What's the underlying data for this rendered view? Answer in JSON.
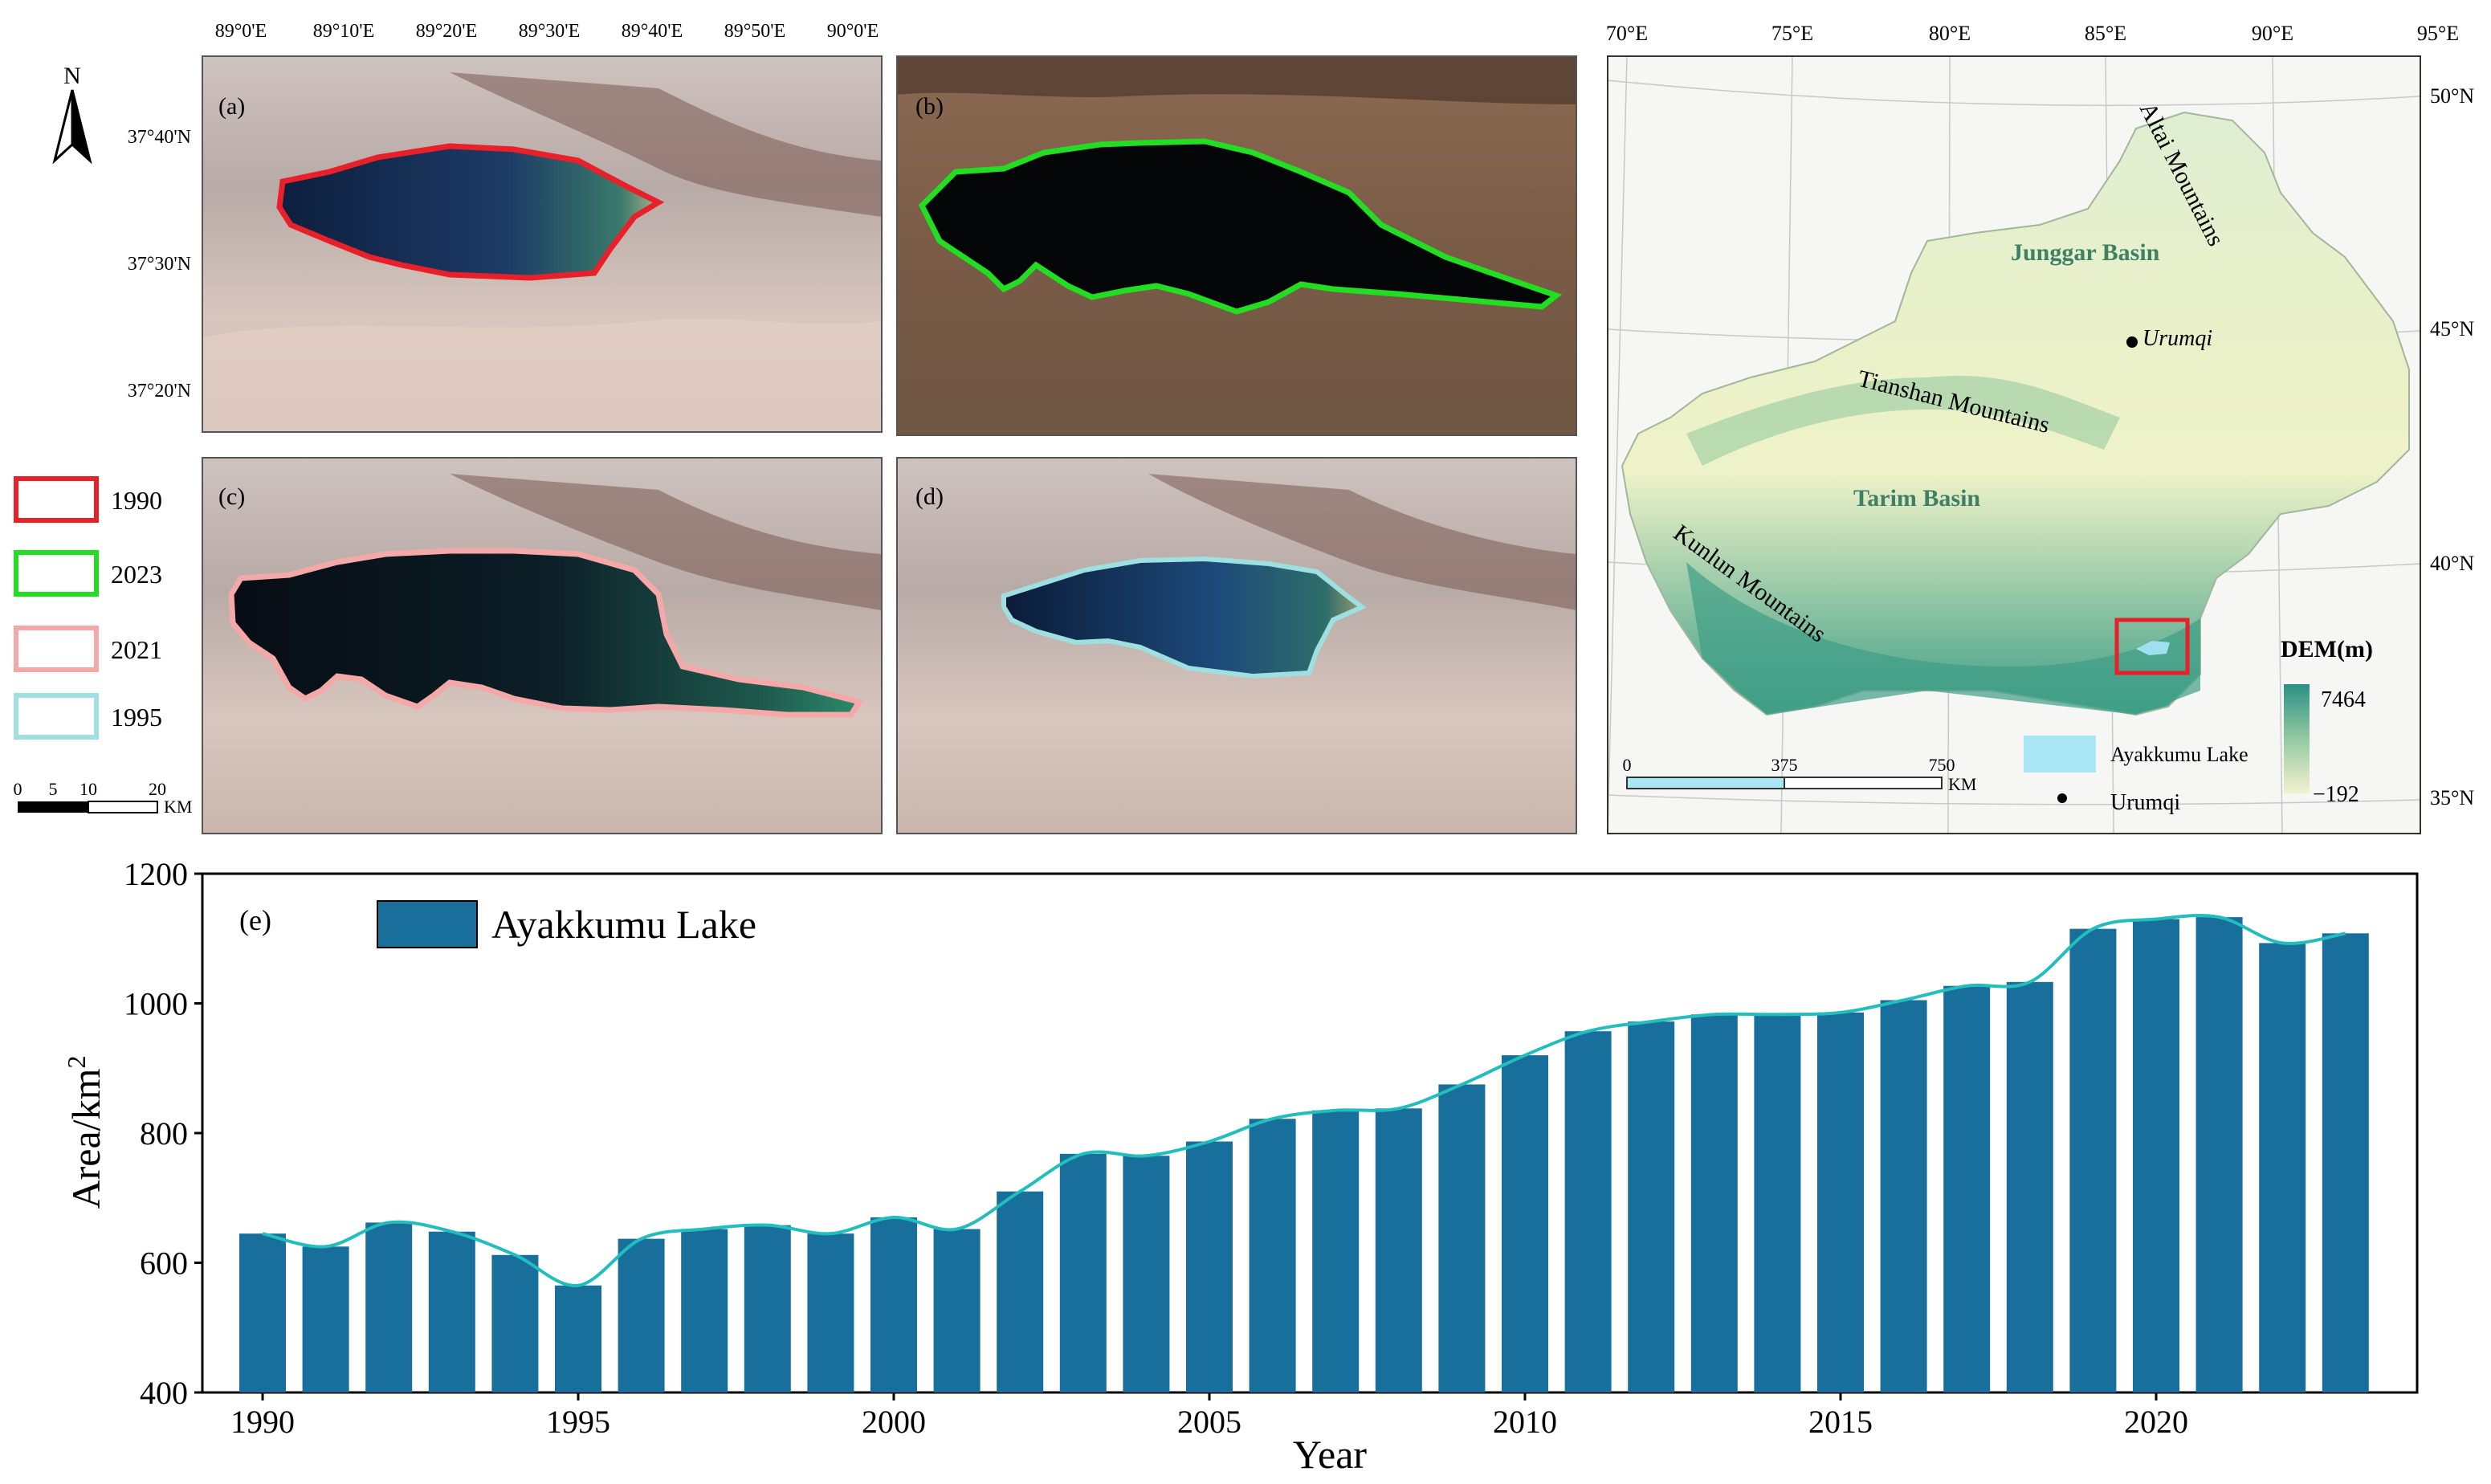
{
  "panels": {
    "a": {
      "label": "(a)"
    },
    "b": {
      "label": "(b)"
    },
    "c": {
      "label": "(c)"
    },
    "d": {
      "label": "(d)"
    },
    "e": {
      "label": "(e)"
    }
  },
  "lon_ticks": [
    "89°0'E",
    "89°10'E",
    "89°20'E",
    "89°30'E",
    "89°40'E",
    "89°50'E",
    "90°0'E"
  ],
  "lat_ticks": [
    "37°40'N",
    "37°30'N",
    "37°20'N"
  ],
  "north_label": "N",
  "year_legend": [
    {
      "year": "1990",
      "color": "#e8202a"
    },
    {
      "year": "2023",
      "color": "#22dd22"
    },
    {
      "year": "2021",
      "color": "#f4a8a8"
    },
    {
      "year": "1995",
      "color": "#9ee0e0"
    }
  ],
  "small_scale": {
    "ticks": [
      "0",
      "5",
      "10",
      "20"
    ],
    "unit": "KM"
  },
  "map": {
    "lon_ticks": [
      "70°E",
      "75°E",
      "80°E",
      "85°E",
      "90°E",
      "95°E"
    ],
    "lat_ticks": [
      "50°N",
      "45°N",
      "40°N",
      "35°N"
    ],
    "labels": {
      "altai": "Altai Mountains",
      "junggar": "Junggar Basin",
      "urumqi": "Urumqi",
      "tianshan": "Tianshan Mountains",
      "tarim": "Tarim Basin",
      "kunlun": "Kunlun Mountains"
    },
    "dem_title": "DEM(m)",
    "dem_max": "7464",
    "dem_min": "−192",
    "legend_lake": "Ayakkumu Lake",
    "legend_city": "Urumqi",
    "scale_ticks": [
      "0",
      "375",
      "750"
    ],
    "scale_unit": "KM"
  },
  "chart_data": {
    "type": "bar",
    "title": "",
    "series": [
      {
        "name": "Ayakkumu Lake",
        "color": "#196f9b"
      }
    ],
    "categories": [
      1990,
      1991,
      1992,
      1993,
      1994,
      1995,
      1996,
      1997,
      1998,
      1999,
      2000,
      2001,
      2002,
      2003,
      2004,
      2005,
      2006,
      2007,
      2008,
      2009,
      2010,
      2011,
      2012,
      2013,
      2014,
      2015,
      2016,
      2017,
      2018,
      2019,
      2020,
      2021,
      2022,
      2023
    ],
    "values": [
      645,
      625,
      662,
      648,
      612,
      565,
      637,
      652,
      658,
      645,
      670,
      652,
      710,
      768,
      765,
      787,
      822,
      835,
      838,
      875,
      920,
      957,
      972,
      983,
      983,
      986,
      1005,
      1027,
      1033,
      1115,
      1130,
      1133,
      1093,
      1108
    ],
    "smooth_line": {
      "color": "#22bdbd"
    },
    "xlabel": "Year",
    "ylabel": "Area/km",
    "ylabel_sup": "2",
    "ylim": [
      400,
      1200
    ],
    "yticks": [
      400,
      600,
      800,
      1000,
      1200
    ],
    "xticks": [
      1990,
      1995,
      2000,
      2005,
      2010,
      2015,
      2020
    ],
    "legend": "top-left",
    "grid": false
  }
}
